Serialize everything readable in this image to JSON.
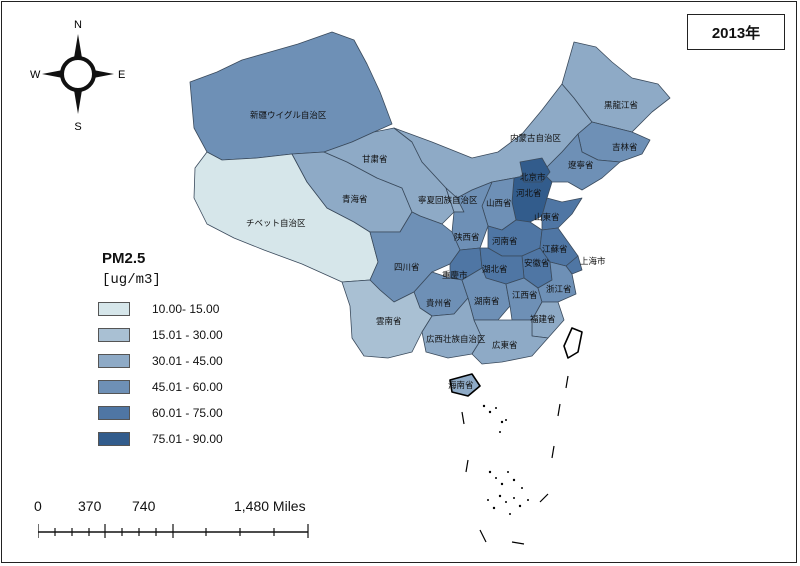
{
  "year_label": "2013年",
  "compass": {
    "n": "N",
    "s": "S",
    "e": "E",
    "w": "W"
  },
  "legend": {
    "title": "PM2.5",
    "unit": "[ug/m3]",
    "classes": [
      {
        "label": "10.00- 15.00",
        "color": "#d6e6ea"
      },
      {
        "label": "15.01 - 30.00",
        "color": "#a9c0d3"
      },
      {
        "label": "30.01 - 45.00",
        "color": "#8eaac6"
      },
      {
        "label": "45.01 - 60.00",
        "color": "#6e90b6"
      },
      {
        "label": "60.01 - 75.00",
        "color": "#4f76a4"
      },
      {
        "label": "75.01 - 90.00",
        "color": "#325c8c"
      }
    ]
  },
  "scale": {
    "l0": "0",
    "l1": "370",
    "l2": "740",
    "l3": "1,480 Miles"
  },
  "provinces": {
    "xinjiang": "新疆ウイグル自治区",
    "tibet": "チベット自治区",
    "qinghai": "青海省",
    "gansu": "甘粛省",
    "neimenggu": "内蒙古自治区",
    "heilongjiang": "黒龍江省",
    "jilin": "吉林省",
    "liaoning": "遼寧省",
    "beijing": "北京市",
    "hebei": "河北省",
    "shanxi": "山西省",
    "ningxia": "寧夏回族自治区",
    "shandong": "山東省",
    "shaanxi": "陕西省",
    "henan": "河南省",
    "jiangsu": "江蘇省",
    "shanghai": "上海市",
    "sichuan": "四川省",
    "chongqing": "重慶市",
    "hubei": "湖北省",
    "anhui": "安徽省",
    "zhejiang": "浙江省",
    "guizhou": "貴州省",
    "hunan": "湖南省",
    "jiangxi": "江西省",
    "yunnan": "雲南省",
    "guangxi": "広西壮族自治区",
    "guangdong": "広東省",
    "fujian": "福建省",
    "hainan": "海南省"
  }
}
